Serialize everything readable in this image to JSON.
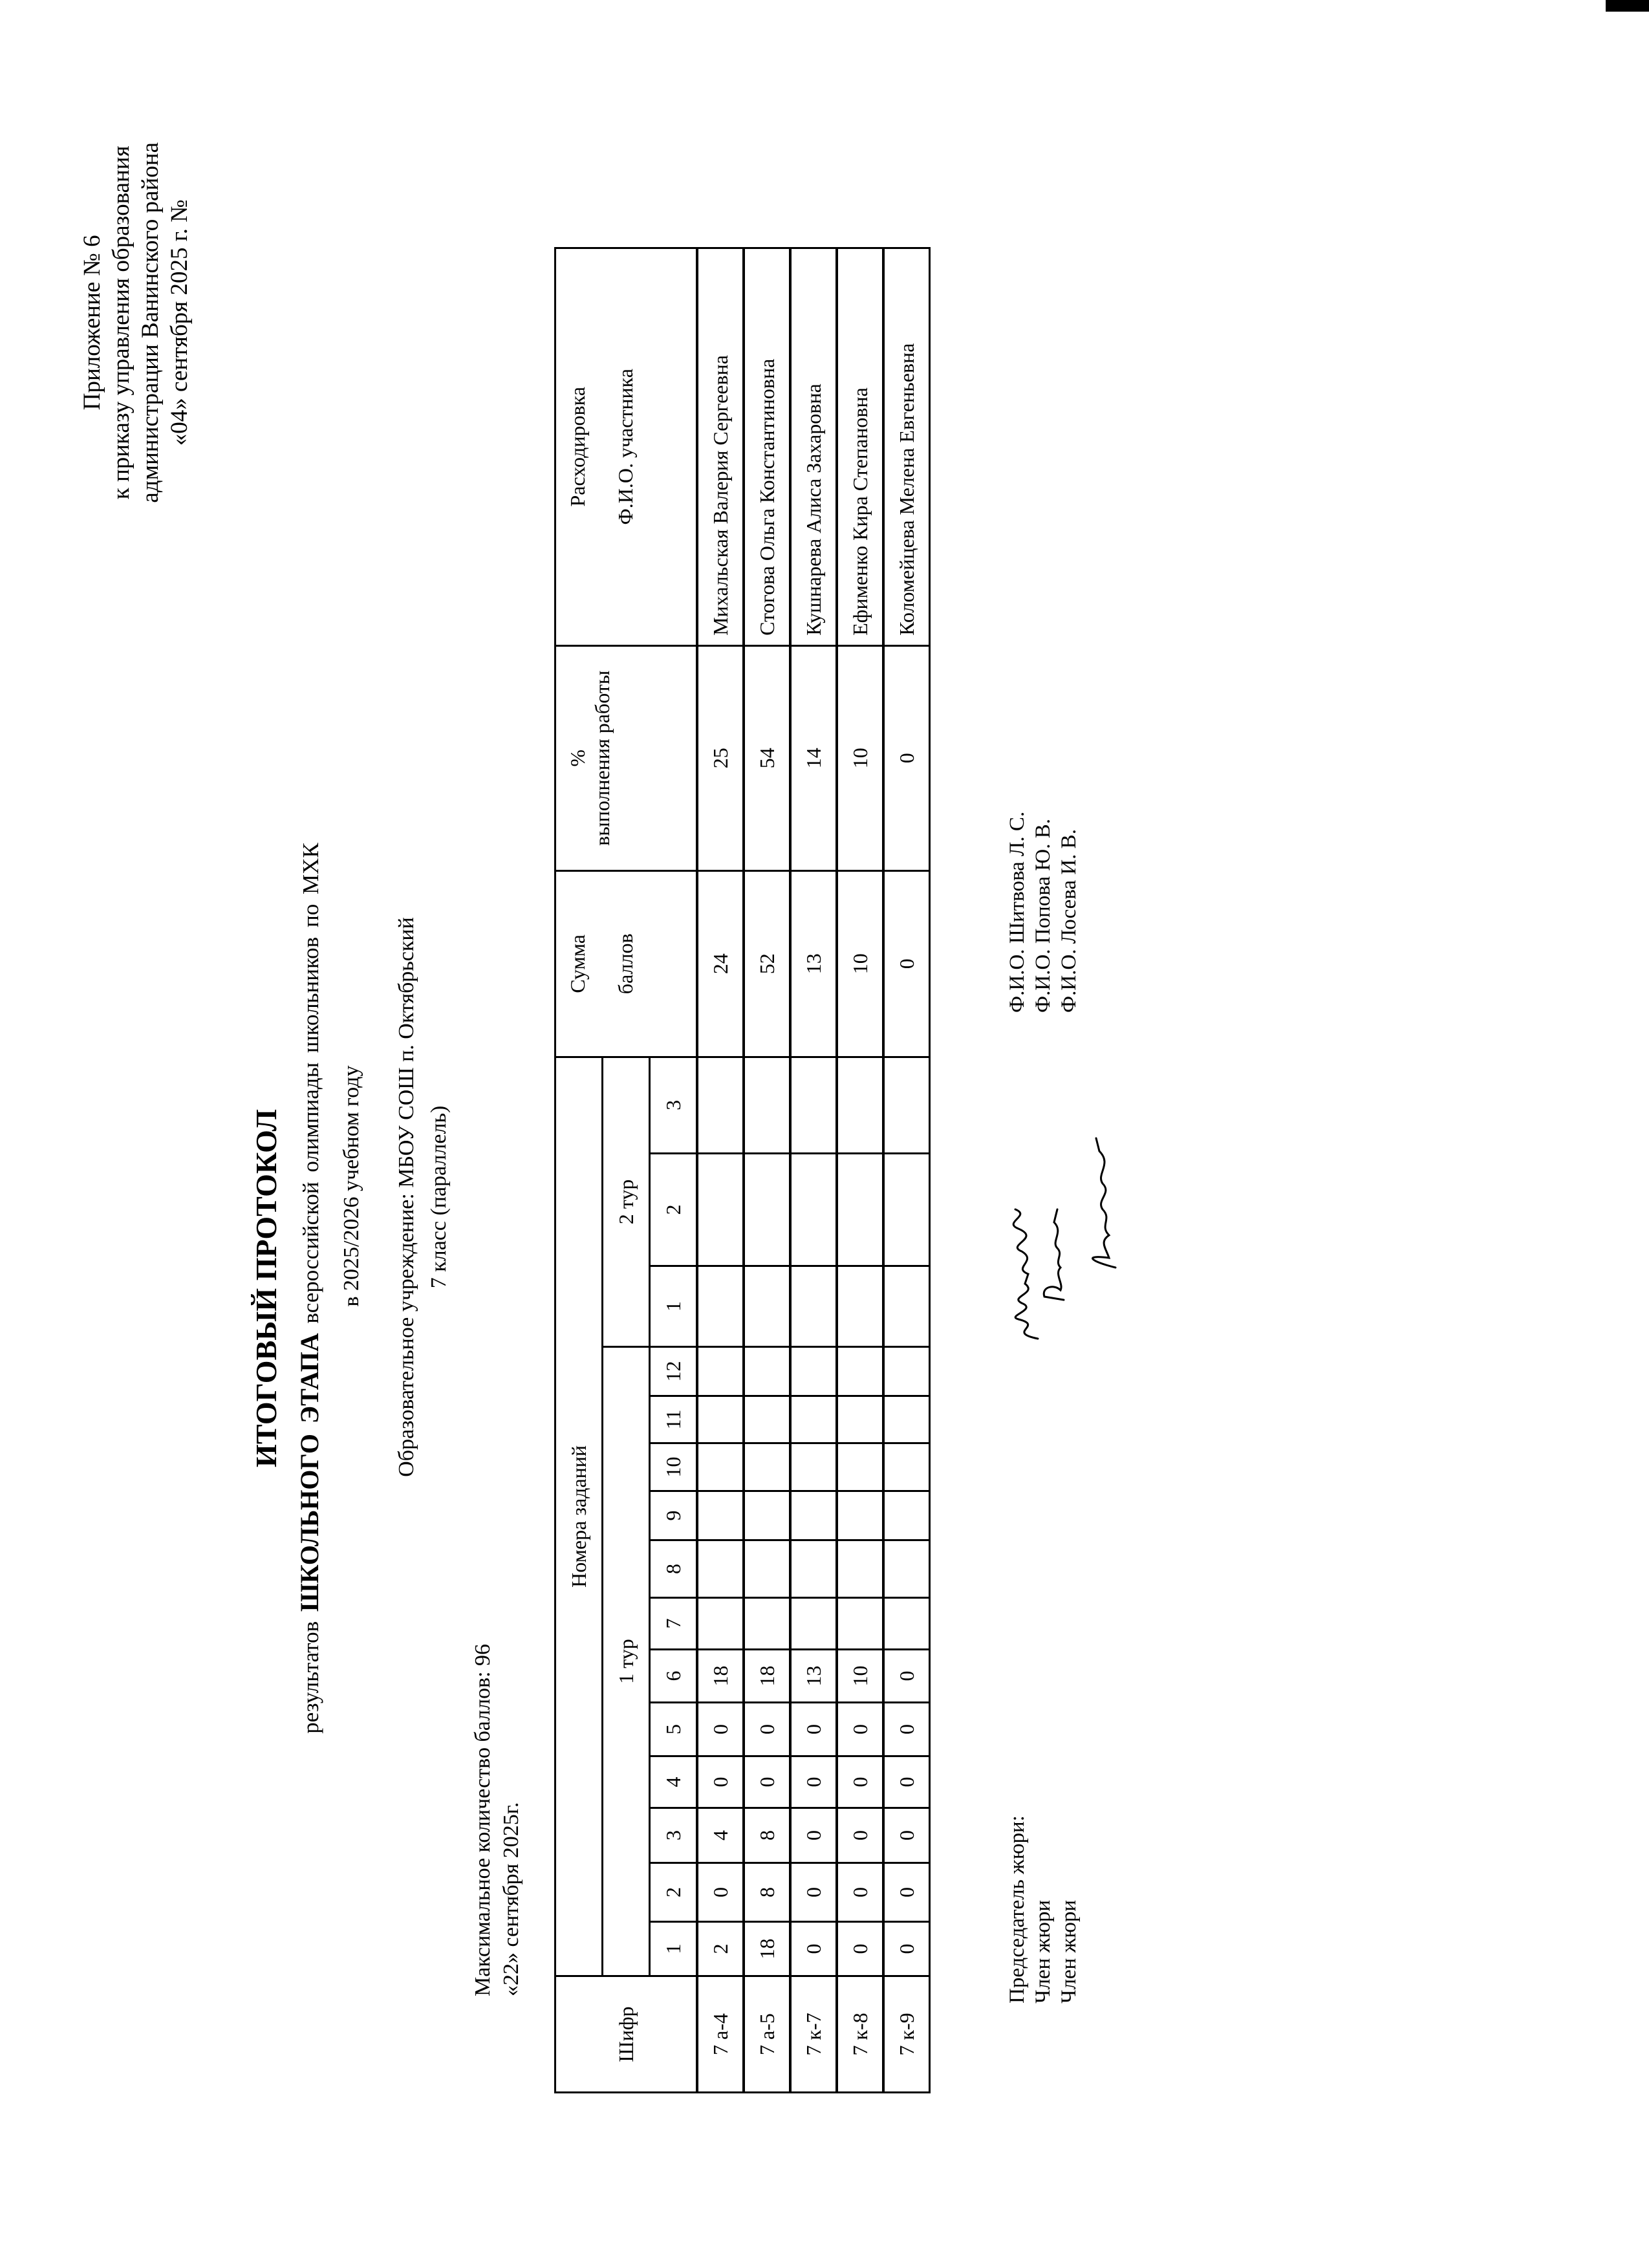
{
  "appendix": {
    "lines": [
      "Приложение № 6",
      "к приказу управления образования",
      "администрации Ванинского района",
      "«04» сентября 2025 г. №"
    ]
  },
  "header": {
    "title": "ИТОГОВЫЙ ПРОТОКОЛ",
    "subtitle_pre": "результатов",
    "subtitle_bold": "ШКОЛЬНОГО ЭТАПА",
    "subtitle_post": "всероссийской олимпиады школьников по МХК",
    "year": "в 2025/2026 учебном году",
    "school": "Образовательное учреждение: МБОУ СОШ п. Октябрьский",
    "klass": "7 класс (параллель)",
    "max_score": "Максимальное количество баллов: 96",
    "date": "«22» сентября 2025г."
  },
  "table": {
    "col_cipher": "Шифр",
    "col_tasks": "Номера заданий",
    "round1": "1 тур",
    "round2": "2 тур",
    "round1_tasks": [
      "1",
      "2",
      "3",
      "4",
      "5",
      "6",
      "7",
      "8",
      "9",
      "10",
      "11",
      "12"
    ],
    "round2_tasks": [
      "1",
      "2",
      "3"
    ],
    "col_sum": [
      "Сумма",
      "баллов"
    ],
    "col_percent": [
      "%",
      "выполнения работы"
    ],
    "col_name": [
      "Расходировка",
      "Ф.И.О. участника"
    ],
    "rows": [
      {
        "cipher": "7 а-4",
        "r1": [
          "2",
          "0",
          "4",
          "0",
          "0",
          "18",
          "",
          "",
          "",
          "",
          "",
          ""
        ],
        "r2": [
          "",
          "",
          ""
        ],
        "sum": "24",
        "percent": "25",
        "name": "Михальская Валерия Сергеевна"
      },
      {
        "cipher": "7 а-5",
        "r1": [
          "18",
          "8",
          "8",
          "0",
          "0",
          "18",
          "",
          "",
          "",
          "",
          "",
          ""
        ],
        "r2": [
          "",
          "",
          ""
        ],
        "sum": "52",
        "percent": "54",
        "name": "Стогова Ольга Константиновна"
      },
      {
        "cipher": "7 к-7",
        "r1": [
          "0",
          "0",
          "0",
          "0",
          "0",
          "13",
          "",
          "",
          "",
          "",
          "",
          ""
        ],
        "r2": [
          "",
          "",
          ""
        ],
        "sum": "13",
        "percent": "14",
        "name": "Кушнарева Алиса Захаровна"
      },
      {
        "cipher": "7 к-8",
        "r1": [
          "0",
          "0",
          "0",
          "0",
          "0",
          "10",
          "",
          "",
          "",
          "",
          "",
          ""
        ],
        "r2": [
          "",
          "",
          ""
        ],
        "sum": "10",
        "percent": "10",
        "name": "Ефименко Кира Степановна"
      },
      {
        "cipher": "7 к-9",
        "r1": [
          "0",
          "0",
          "0",
          "0",
          "0",
          "0",
          "",
          "",
          "",
          "",
          "",
          ""
        ],
        "r2": [
          "",
          "",
          ""
        ],
        "sum": "0",
        "percent": "0",
        "name": "Коломейцева Мелена Евгеньевна"
      }
    ]
  },
  "jury": {
    "roles": [
      "Председатель жюри:",
      "Член жюри",
      "Член жюри"
    ],
    "names": [
      "Ф.И.О. Шитвова Л. С.",
      "Ф.И.О. Попова Ю. В.",
      "Ф.И.О. Лосева И. В."
    ],
    "signatures": [
      "Шитвова",
      "Попова",
      "Лосева"
    ]
  }
}
